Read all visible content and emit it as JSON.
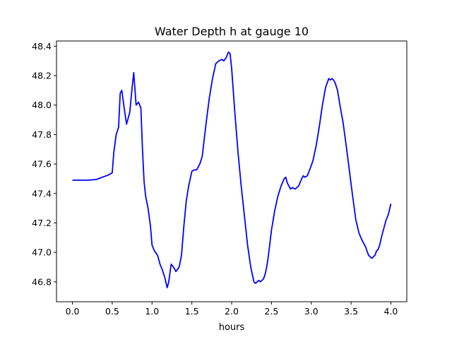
{
  "chart_data": {
    "type": "line",
    "title": "Water Depth h at gauge 10",
    "xlabel": "hours",
    "ylabel": "",
    "xlim": [
      -0.2,
      4.2
    ],
    "ylim": [
      46.665,
      48.435
    ],
    "x_ticks": [
      0.0,
      0.5,
      1.0,
      1.5,
      2.0,
      2.5,
      3.0,
      3.5,
      4.0
    ],
    "x_tick_labels": [
      "0.0",
      "0.5",
      "1.0",
      "1.5",
      "2.0",
      "2.5",
      "3.0",
      "3.5",
      "4.0"
    ],
    "y_ticks": [
      46.8,
      47.0,
      47.2,
      47.4,
      47.6,
      47.8,
      48.0,
      48.2,
      48.4
    ],
    "y_tick_labels": [
      "46.8",
      "47.0",
      "47.2",
      "47.4",
      "47.6",
      "47.8",
      "48.0",
      "48.2",
      "48.4"
    ],
    "grid": false,
    "legend": "none",
    "series": [
      {
        "color": "#0000ff",
        "x": [
          0.0,
          0.1,
          0.2,
          0.3,
          0.35,
          0.4,
          0.45,
          0.5,
          0.52,
          0.55,
          0.58,
          0.6,
          0.62,
          0.65,
          0.68,
          0.72,
          0.75,
          0.77,
          0.8,
          0.83,
          0.86,
          0.88,
          0.9,
          0.92,
          0.95,
          0.98,
          1.0,
          1.03,
          1.07,
          1.1,
          1.13,
          1.16,
          1.19,
          1.21,
          1.24,
          1.27,
          1.3,
          1.34,
          1.37,
          1.4,
          1.43,
          1.46,
          1.5,
          1.53,
          1.56,
          1.6,
          1.63,
          1.68,
          1.72,
          1.76,
          1.8,
          1.84,
          1.88,
          1.9,
          1.93,
          1.96,
          1.98,
          2.0,
          2.02,
          2.04,
          2.08,
          2.12,
          2.16,
          2.2,
          2.24,
          2.28,
          2.3,
          2.32,
          2.34,
          2.36,
          2.38,
          2.4,
          2.42,
          2.44,
          2.46,
          2.5,
          2.54,
          2.58,
          2.62,
          2.66,
          2.68,
          2.7,
          2.72,
          2.74,
          2.76,
          2.8,
          2.84,
          2.88,
          2.9,
          2.92,
          2.95,
          2.98,
          3.02,
          3.06,
          3.1,
          3.14,
          3.18,
          3.22,
          3.24,
          3.26,
          3.28,
          3.3,
          3.33,
          3.36,
          3.4,
          3.44,
          3.48,
          3.52,
          3.56,
          3.6,
          3.64,
          3.68,
          3.72,
          3.76,
          3.8,
          3.82,
          3.84,
          3.86,
          3.88,
          3.9,
          3.94,
          3.97,
          4.0
        ],
        "y": [
          47.49,
          47.49,
          47.49,
          47.495,
          47.505,
          47.515,
          47.525,
          47.54,
          47.68,
          47.8,
          47.85,
          48.08,
          48.1,
          47.98,
          47.87,
          47.95,
          48.12,
          48.22,
          48.0,
          48.02,
          47.98,
          47.7,
          47.48,
          47.38,
          47.3,
          47.18,
          47.05,
          47.01,
          46.98,
          46.92,
          46.88,
          46.83,
          46.76,
          46.8,
          46.92,
          46.9,
          46.87,
          46.9,
          46.98,
          47.18,
          47.35,
          47.45,
          47.55,
          47.56,
          47.56,
          47.6,
          47.65,
          47.88,
          48.05,
          48.18,
          48.28,
          48.3,
          48.31,
          48.3,
          48.32,
          48.36,
          48.35,
          48.25,
          48.1,
          47.95,
          47.68,
          47.45,
          47.25,
          47.05,
          46.9,
          46.8,
          46.79,
          46.8,
          46.81,
          46.8,
          46.81,
          46.82,
          46.85,
          46.9,
          46.97,
          47.15,
          47.28,
          47.38,
          47.45,
          47.5,
          47.51,
          47.47,
          47.45,
          47.43,
          47.44,
          47.43,
          47.45,
          47.5,
          47.52,
          47.51,
          47.52,
          47.56,
          47.62,
          47.72,
          47.85,
          48.0,
          48.12,
          48.18,
          48.17,
          48.18,
          48.17,
          48.15,
          48.1,
          48.0,
          47.88,
          47.72,
          47.55,
          47.38,
          47.22,
          47.13,
          47.08,
          47.04,
          46.98,
          46.96,
          46.98,
          47.01,
          47.02,
          47.05,
          47.1,
          47.14,
          47.22,
          47.26,
          47.33
        ]
      }
    ]
  }
}
